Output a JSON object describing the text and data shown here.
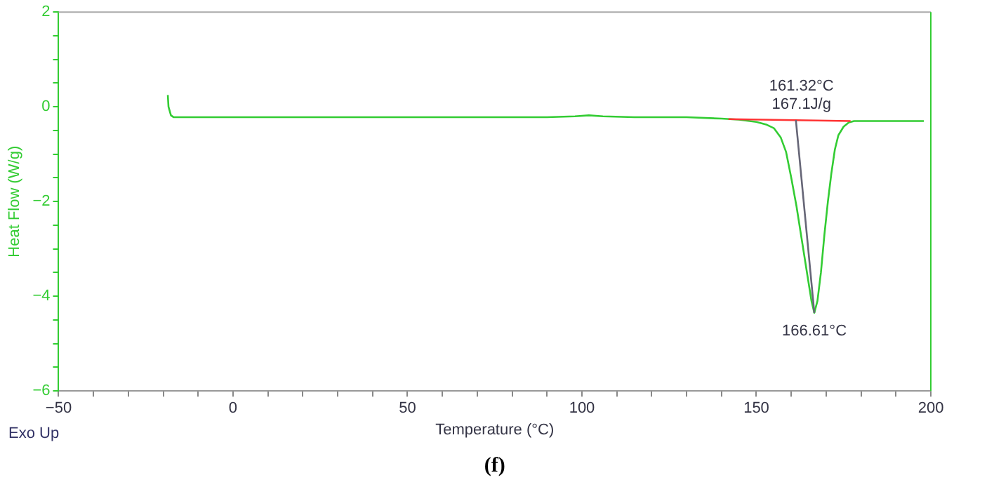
{
  "chart_data": {
    "type": "line",
    "xlabel": "Temperature (°C)",
    "ylabel": "Heat Flow (W/g)",
    "xlim": [
      -50,
      200
    ],
    "ylim": [
      -6,
      2
    ],
    "xticks": [
      -50,
      {
        "value": -40,
        "label": null
      },
      {
        "value": -30,
        "label": null
      },
      {
        "value": -20,
        "label": null
      },
      {
        "value": -10,
        "label": null
      },
      0,
      {
        "value": 10,
        "label": null
      },
      {
        "value": 20,
        "label": null
      },
      {
        "value": 30,
        "label": null
      },
      {
        "value": 40,
        "label": null
      },
      50,
      {
        "value": 60,
        "label": null
      },
      {
        "value": 70,
        "label": null
      },
      {
        "value": 80,
        "label": null
      },
      {
        "value": 90,
        "label": null
      },
      100,
      {
        "value": 110,
        "label": null
      },
      {
        "value": 120,
        "label": null
      },
      {
        "value": 130,
        "label": null
      },
      {
        "value": 140,
        "label": null
      },
      150,
      {
        "value": 160,
        "label": null
      },
      {
        "value": 170,
        "label": null
      },
      {
        "value": 180,
        "label": null
      },
      {
        "value": 190,
        "label": null
      },
      200
    ],
    "yticks": [
      -6,
      {
        "value": -5.5,
        "label": null
      },
      {
        "value": -5,
        "label": null
      },
      {
        "value": -4.5,
        "label": null
      },
      -4,
      {
        "value": -3.5,
        "label": null
      },
      {
        "value": -3,
        "label": null
      },
      {
        "value": -2.5,
        "label": null
      },
      -2,
      {
        "value": -1.5,
        "label": null
      },
      {
        "value": -1,
        "label": null
      },
      {
        "value": -0.5,
        "label": null
      },
      0,
      {
        "value": 0.5,
        "label": null
      },
      {
        "value": 1,
        "label": null
      },
      {
        "value": 1.5,
        "label": null
      },
      2
    ],
    "grid": false,
    "legend": false,
    "marker": "none",
    "line_style": "solid",
    "series": [
      {
        "color": "#33cc33",
        "x": [
          -18.7,
          -18.5,
          -17.8,
          -17,
          -10,
          20,
          60,
          90,
          98,
          102,
          106,
          115,
          130,
          140,
          145,
          150,
          153,
          155,
          157,
          158.5,
          160,
          161.5,
          163,
          164.5,
          165.8,
          166.6,
          167.5,
          168.5,
          169.5,
          170.5,
          171.5,
          172.5,
          173.5,
          175,
          176.5,
          178,
          185,
          198
        ],
        "values": [
          0.25,
          0,
          -0.18,
          -0.22,
          -0.22,
          -0.22,
          -0.22,
          -0.22,
          -0.2,
          -0.18,
          -0.2,
          -0.22,
          -0.22,
          -0.25,
          -0.27,
          -0.32,
          -0.38,
          -0.45,
          -0.65,
          -0.95,
          -1.5,
          -2.1,
          -2.8,
          -3.5,
          -4.1,
          -4.35,
          -4.1,
          -3.5,
          -2.7,
          -2,
          -1.4,
          -0.9,
          -0.6,
          -0.42,
          -0.33,
          -0.3,
          -0.3,
          -0.3
        ]
      },
      {
        "color": "#ff3333",
        "x": [
          142,
          177
        ],
        "values": [
          -0.26,
          -0.3
        ]
      },
      {
        "color": "#666677",
        "x": [
          161.32,
          166.61
        ],
        "values": [
          -0.28,
          -4.35
        ]
      }
    ],
    "annotations": [
      {
        "text": "161.32°C\n167.1J/g",
        "x": 161.32,
        "y": -0.28
      },
      {
        "text": "166.61°C",
        "x": 166.61,
        "y": -4.35
      },
      "Exo Up",
      "(f)"
    ]
  }
}
